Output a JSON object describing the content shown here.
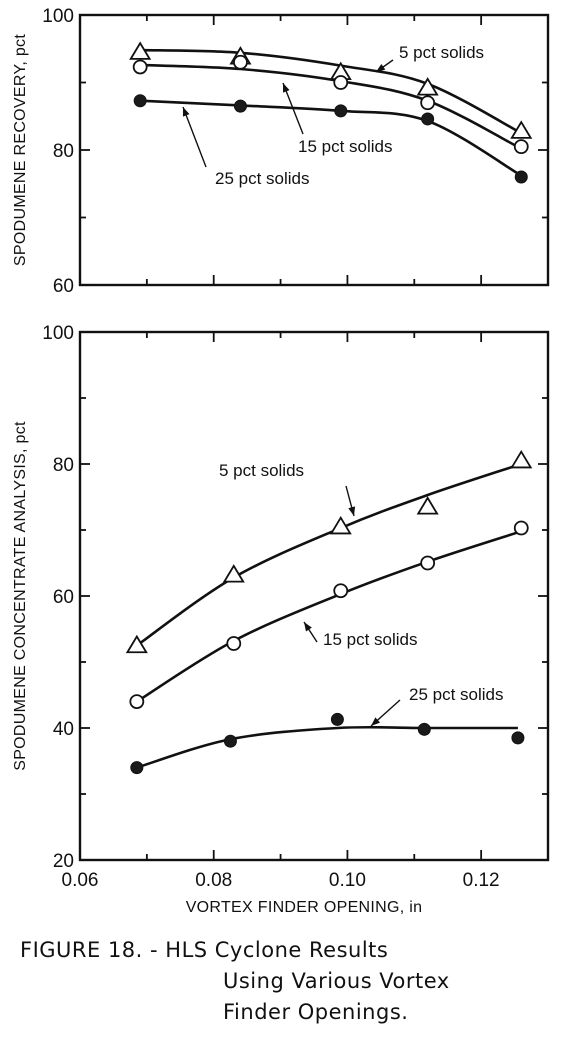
{
  "chart_data": [
    {
      "type": "line",
      "ylabel": "SPODUMENE RECOVERY, pct",
      "xlabel": "",
      "xlim": [
        0.06,
        0.13
      ],
      "ylim": [
        60,
        100
      ],
      "x_ticks": [
        0.06,
        0.08,
        0.1,
        0.12
      ],
      "y_ticks": [
        60,
        80,
        100
      ],
      "y_tick_labels": [
        "60",
        "80",
        "100"
      ],
      "series": [
        {
          "name": "5 pct solids",
          "marker": "triangle",
          "x": [
            0.069,
            0.084,
            0.099,
            0.112,
            0.126
          ],
          "y": [
            94.5,
            93.8,
            91.5,
            89.2,
            82.8
          ],
          "curve_y": [
            94.8,
            94.4,
            92.5,
            89.8,
            82.5
          ]
        },
        {
          "name": "15 pct solids",
          "marker": "open-circle",
          "x": [
            0.069,
            0.084,
            0.099,
            0.112,
            0.126
          ],
          "y": [
            92.3,
            93.0,
            90.0,
            87.0,
            80.5
          ],
          "curve_y": [
            92.6,
            92.0,
            90.2,
            87.3,
            80.2
          ]
        },
        {
          "name": "25 pct solids",
          "marker": "filled-circle",
          "x": [
            0.069,
            0.084,
            0.099,
            0.112,
            0.126
          ],
          "y": [
            87.3,
            86.5,
            85.8,
            84.6,
            76.0
          ],
          "curve_y": [
            87.3,
            86.6,
            85.8,
            84.3,
            76.2
          ]
        }
      ],
      "annotations": [
        "5 pct solids",
        "15 pct solids",
        "25 pct solids"
      ]
    },
    {
      "type": "line",
      "ylabel": "SPODUMENE CONCENTRATE ANALYSIS, pct",
      "xlabel": "VORTEX FINDER OPENING, in",
      "xlim": [
        0.06,
        0.13
      ],
      "ylim": [
        20,
        100
      ],
      "x_ticks": [
        0.06,
        0.08,
        0.1,
        0.12
      ],
      "x_tick_labels": [
        "0.06",
        "0.08",
        "0.10",
        "0.12"
      ],
      "y_ticks": [
        20,
        40,
        60,
        80,
        100
      ],
      "y_tick_labels": [
        "20",
        "40",
        "60",
        "80",
        "100"
      ],
      "series": [
        {
          "name": "5 pct solids",
          "marker": "triangle",
          "x": [
            0.0685,
            0.083,
            0.099,
            0.112,
            0.126
          ],
          "y": [
            52.5,
            63.2,
            70.5,
            73.5,
            80.5
          ],
          "curve_y": [
            52.5,
            62.8,
            70.3,
            75.3,
            80.0
          ]
        },
        {
          "name": "15 pct solids",
          "marker": "open-circle",
          "x": [
            0.0685,
            0.083,
            0.099,
            0.112,
            0.126
          ],
          "y": [
            44.0,
            52.8,
            60.8,
            65.0,
            70.3
          ],
          "curve_y": [
            44.0,
            53.2,
            60.3,
            65.2,
            69.8
          ]
        },
        {
          "name": "25 pct solids",
          "marker": "filled-circle",
          "x": [
            0.0685,
            0.0825,
            0.0985,
            0.1115,
            0.1255
          ],
          "y": [
            34.0,
            38.0,
            41.3,
            39.8,
            38.5
          ],
          "curve_y": [
            34.0,
            38.3,
            40.0,
            40.0,
            40.0
          ]
        }
      ],
      "annotations": [
        "5 pct solids",
        "15 pct solids",
        "25 pct solids"
      ]
    }
  ],
  "caption": {
    "line1": "FIGURE 18. - HLS Cyclone Results",
    "line2": "Using Various Vortex",
    "line3": "Finder Openings."
  }
}
